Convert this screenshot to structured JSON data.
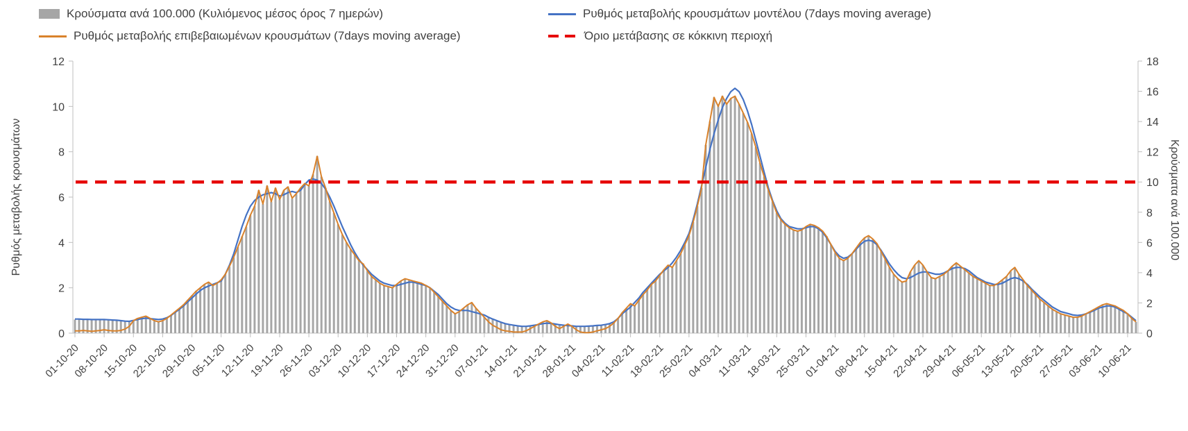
{
  "chart_data": {
    "type": "bar",
    "subtype": "combo-bar-line",
    "title": "",
    "left_axis": {
      "label": "Ρυθμός μεταβολής κρουσμάτων",
      "min": 0,
      "max": 12,
      "tick_step": 2
    },
    "right_axis": {
      "label": "Κρούσματα ανά 100.000",
      "min": 0,
      "max": 18,
      "tick_step": 2
    },
    "x_tick_interval_days": 7,
    "x_tick_labels": [
      "01-10-20",
      "08-10-20",
      "15-10-20",
      "22-10-20",
      "29-10-20",
      "05-11-20",
      "12-11-20",
      "19-11-20",
      "26-11-20",
      "03-12-20",
      "10-12-20",
      "17-12-20",
      "24-12-20",
      "31-12-20",
      "07-01-21",
      "14-01-21",
      "21-01-21",
      "28-01-21",
      "04-02-21",
      "11-02-21",
      "18-02-21",
      "25-02-21",
      "04-03-21",
      "11-03-21",
      "18-03-21",
      "25-03-21",
      "01-04-21",
      "08-04-21",
      "15-04-21",
      "22-04-21",
      "29-04-21",
      "06-05-21",
      "13-05-21",
      "20-05-21",
      "27-05-21",
      "03-06-21",
      "10-06-21"
    ],
    "legend_position": "top",
    "grid": false,
    "threshold": {
      "label": "Όριο μετάβασης σε κόκκινη περιοχή",
      "value_right_axis": 10,
      "value_left_axis": 6.67,
      "color": "#e60000"
    },
    "series": [
      {
        "name": "Κρούσματα ανά 100.000 (Κυλιόμενος μέσος όρος 7 ημερών)",
        "type": "bar",
        "axis": "right",
        "color": "#a6a6a6",
        "values": [
          0.9,
          0.9,
          0.9,
          0.9,
          0.9,
          0.9,
          0.9,
          0.9,
          0.9,
          0.85,
          0.85,
          0.8,
          0.8,
          0.8,
          0.8,
          1.0,
          1.05,
          1.1,
          1.0,
          0.8,
          0.75,
          0.8,
          1.0,
          1.2,
          1.4,
          1.65,
          1.9,
          2.2,
          2.5,
          2.8,
          3.0,
          3.2,
          3.4,
          3.15,
          3.3,
          3.5,
          3.9,
          4.4,
          5.0,
          5.7,
          6.4,
          7.05,
          7.8,
          8.4,
          9.45,
          8.55,
          9.75,
          8.7,
          9.6,
          8.85,
          9.45,
          9.7,
          8.9,
          9.2,
          9.6,
          9.9,
          9.75,
          10.5,
          11.7,
          10.35,
          9.6,
          8.7,
          7.95,
          7.2,
          6.5,
          6.0,
          5.55,
          5.2,
          4.8,
          4.6,
          4.1,
          3.75,
          3.5,
          3.3,
          3.15,
          3.1,
          3.0,
          3.2,
          3.45,
          3.6,
          3.5,
          3.45,
          3.4,
          3.3,
          3.15,
          3.0,
          2.7,
          2.4,
          2.1,
          1.8,
          1.5,
          1.3,
          1.4,
          1.65,
          1.9,
          2.0,
          1.65,
          1.35,
          1.05,
          1.05,
          0.95,
          0.85,
          0.7,
          0.65,
          0.55,
          0.5,
          0.5,
          0.45,
          0.45,
          0.5,
          0.55,
          0.6,
          0.75,
          0.8,
          0.7,
          0.6,
          0.55,
          0.55,
          0.6,
          0.5,
          0.45,
          0.45,
          0.45,
          0.45,
          0.5,
          0.5,
          0.55,
          0.55,
          0.65,
          0.75,
          1.0,
          1.35,
          1.65,
          1.95,
          1.8,
          2.2,
          2.55,
          2.85,
          3.2,
          3.45,
          3.8,
          4.2,
          4.5,
          4.35,
          4.8,
          5.25,
          5.85,
          6.45,
          7.35,
          8.4,
          9.6,
          12.45,
          14.0,
          15.6,
          15.0,
          15.7,
          15.15,
          15.5,
          15.7,
          15.15,
          14.55,
          13.95,
          13.2,
          12.3,
          11.25,
          10.35,
          9.45,
          8.7,
          7.95,
          7.5,
          7.2,
          7.0,
          6.8,
          6.75,
          6.8,
          7.05,
          7.2,
          7.1,
          7.0,
          6.75,
          6.4,
          5.85,
          5.3,
          4.95,
          4.8,
          4.95,
          5.25,
          5.6,
          6.0,
          6.3,
          6.45,
          6.2,
          5.9,
          5.4,
          4.9,
          4.35,
          3.9,
          3.6,
          3.4,
          3.45,
          4.05,
          4.5,
          4.8,
          4.5,
          4.05,
          3.7,
          3.6,
          3.75,
          3.9,
          4.1,
          4.4,
          4.65,
          4.4,
          4.2,
          4.0,
          3.75,
          3.6,
          3.45,
          3.3,
          3.15,
          3.15,
          3.3,
          3.5,
          3.75,
          4.1,
          4.35,
          3.9,
          3.5,
          3.15,
          2.85,
          2.55,
          2.25,
          2.0,
          1.8,
          1.6,
          1.4,
          1.3,
          1.2,
          1.1,
          1.05,
          1.05,
          1.1,
          1.3,
          1.4,
          1.6,
          1.7,
          1.9,
          1.95,
          1.9,
          1.8,
          1.65,
          1.5,
          1.3,
          1.0,
          0.75
        ]
      },
      {
        "name": "Ρυθμός μεταβολής κρουσμάτων μοντέλου (7days moving average)",
        "type": "line",
        "axis": "left",
        "color": "#4472c4",
        "values": [
          0.62,
          0.62,
          0.61,
          0.61,
          0.6,
          0.6,
          0.6,
          0.6,
          0.59,
          0.58,
          0.57,
          0.55,
          0.53,
          0.52,
          0.56,
          0.6,
          0.64,
          0.66,
          0.64,
          0.62,
          0.6,
          0.62,
          0.68,
          0.78,
          0.92,
          1.05,
          1.2,
          1.38,
          1.55,
          1.72,
          1.88,
          2.0,
          2.08,
          2.15,
          2.22,
          2.3,
          2.6,
          3.0,
          3.5,
          4.1,
          4.7,
          5.2,
          5.6,
          5.85,
          6.0,
          6.1,
          6.15,
          6.2,
          6.15,
          6.05,
          6.1,
          6.2,
          6.25,
          6.2,
          6.3,
          6.55,
          6.75,
          6.8,
          6.75,
          6.6,
          6.35,
          6.0,
          5.6,
          5.15,
          4.7,
          4.3,
          3.9,
          3.55,
          3.25,
          3.0,
          2.8,
          2.6,
          2.45,
          2.3,
          2.2,
          2.15,
          2.1,
          2.1,
          2.15,
          2.2,
          2.25,
          2.25,
          2.2,
          2.15,
          2.1,
          2.0,
          1.85,
          1.7,
          1.5,
          1.3,
          1.15,
          1.05,
          1.0,
          1.0,
          1.0,
          0.95,
          0.9,
          0.85,
          0.8,
          0.7,
          0.62,
          0.55,
          0.48,
          0.42,
          0.38,
          0.35,
          0.32,
          0.3,
          0.3,
          0.32,
          0.35,
          0.38,
          0.42,
          0.44,
          0.43,
          0.4,
          0.37,
          0.35,
          0.33,
          0.32,
          0.3,
          0.3,
          0.3,
          0.31,
          0.32,
          0.34,
          0.35,
          0.38,
          0.42,
          0.5,
          0.65,
          0.85,
          1.0,
          1.15,
          1.35,
          1.55,
          1.8,
          2.0,
          2.2,
          2.4,
          2.6,
          2.75,
          2.9,
          3.1,
          3.35,
          3.65,
          4.0,
          4.4,
          5.0,
          5.7,
          6.5,
          7.3,
          8.1,
          8.8,
          9.4,
          9.95,
          10.35,
          10.65,
          10.8,
          10.65,
          10.3,
          9.8,
          9.2,
          8.5,
          7.8,
          7.1,
          6.4,
          5.85,
          5.4,
          5.05,
          4.85,
          4.7,
          4.65,
          4.6,
          4.6,
          4.65,
          4.7,
          4.7,
          4.6,
          4.45,
          4.2,
          3.9,
          3.6,
          3.4,
          3.3,
          3.35,
          3.5,
          3.7,
          3.9,
          4.05,
          4.1,
          4.05,
          3.9,
          3.65,
          3.35,
          3.05,
          2.8,
          2.6,
          2.45,
          2.4,
          2.45,
          2.55,
          2.65,
          2.7,
          2.7,
          2.65,
          2.6,
          2.6,
          2.65,
          2.75,
          2.85,
          2.9,
          2.9,
          2.85,
          2.75,
          2.6,
          2.45,
          2.35,
          2.25,
          2.2,
          2.15,
          2.15,
          2.2,
          2.3,
          2.4,
          2.45,
          2.4,
          2.3,
          2.15,
          1.95,
          1.78,
          1.6,
          1.45,
          1.3,
          1.15,
          1.05,
          0.95,
          0.9,
          0.85,
          0.8,
          0.78,
          0.8,
          0.85,
          0.92,
          1.0,
          1.1,
          1.15,
          1.2,
          1.2,
          1.15,
          1.05,
          0.95,
          0.85,
          0.7,
          0.55
        ]
      },
      {
        "name": "Ρυθμός μεταβολής επιβεβαιωμένων κρουσμάτων (7days moving average)",
        "type": "line",
        "axis": "left",
        "color": "#d9822b",
        "values": [
          0.1,
          0.1,
          0.12,
          0.1,
          0.08,
          0.1,
          0.12,
          0.15,
          0.12,
          0.1,
          0.1,
          0.12,
          0.18,
          0.3,
          0.55,
          0.65,
          0.7,
          0.75,
          0.65,
          0.55,
          0.5,
          0.55,
          0.65,
          0.8,
          0.95,
          1.1,
          1.25,
          1.45,
          1.65,
          1.85,
          2.0,
          2.15,
          2.25,
          2.1,
          2.2,
          2.35,
          2.6,
          2.95,
          3.35,
          3.8,
          4.25,
          4.7,
          5.2,
          5.6,
          6.3,
          5.7,
          6.5,
          5.8,
          6.4,
          5.9,
          6.3,
          6.45,
          5.95,
          6.15,
          6.4,
          6.6,
          6.5,
          7.0,
          7.8,
          6.9,
          6.4,
          5.8,
          5.3,
          4.8,
          4.35,
          4.0,
          3.7,
          3.45,
          3.2,
          3.05,
          2.75,
          2.5,
          2.35,
          2.2,
          2.1,
          2.05,
          2.0,
          2.15,
          2.3,
          2.4,
          2.35,
          2.3,
          2.25,
          2.2,
          2.1,
          2.0,
          1.8,
          1.6,
          1.4,
          1.2,
          1.0,
          0.85,
          0.95,
          1.1,
          1.25,
          1.35,
          1.1,
          0.9,
          0.7,
          0.5,
          0.35,
          0.25,
          0.15,
          0.1,
          0.08,
          0.05,
          0.05,
          0.05,
          0.1,
          0.2,
          0.3,
          0.4,
          0.5,
          0.55,
          0.45,
          0.3,
          0.2,
          0.3,
          0.4,
          0.3,
          0.15,
          0.05,
          0.02,
          0.02,
          0.05,
          0.1,
          0.15,
          0.2,
          0.3,
          0.45,
          0.65,
          0.9,
          1.1,
          1.3,
          1.2,
          1.45,
          1.7,
          1.9,
          2.15,
          2.3,
          2.55,
          2.8,
          3.0,
          2.9,
          3.2,
          3.5,
          3.9,
          4.3,
          4.9,
          5.6,
          6.4,
          8.3,
          9.35,
          10.4,
          10.0,
          10.45,
          10.1,
          10.35,
          10.45,
          10.1,
          9.7,
          9.3,
          8.8,
          8.2,
          7.5,
          6.9,
          6.3,
          5.8,
          5.3,
          5.0,
          4.8,
          4.65,
          4.55,
          4.5,
          4.55,
          4.7,
          4.8,
          4.75,
          4.65,
          4.5,
          4.25,
          3.9,
          3.55,
          3.3,
          3.2,
          3.3,
          3.5,
          3.75,
          4.0,
          4.2,
          4.3,
          4.15,
          3.95,
          3.6,
          3.25,
          2.9,
          2.6,
          2.4,
          2.25,
          2.3,
          2.7,
          3.0,
          3.2,
          3.0,
          2.7,
          2.45,
          2.4,
          2.5,
          2.6,
          2.75,
          2.95,
          3.1,
          2.95,
          2.8,
          2.65,
          2.5,
          2.4,
          2.3,
          2.2,
          2.1,
          2.1,
          2.2,
          2.35,
          2.5,
          2.75,
          2.9,
          2.6,
          2.35,
          2.1,
          1.9,
          1.7,
          1.5,
          1.35,
          1.2,
          1.05,
          0.95,
          0.85,
          0.8,
          0.75,
          0.7,
          0.7,
          0.75,
          0.85,
          0.95,
          1.05,
          1.15,
          1.25,
          1.3,
          1.25,
          1.2,
          1.1,
          1.0,
          0.85,
          0.65,
          0.5
        ]
      }
    ]
  },
  "colors": {
    "axis_line": "#bfbfbf",
    "tick_text": "#404040",
    "legend_text": "#404040",
    "background": "#ffffff"
  }
}
